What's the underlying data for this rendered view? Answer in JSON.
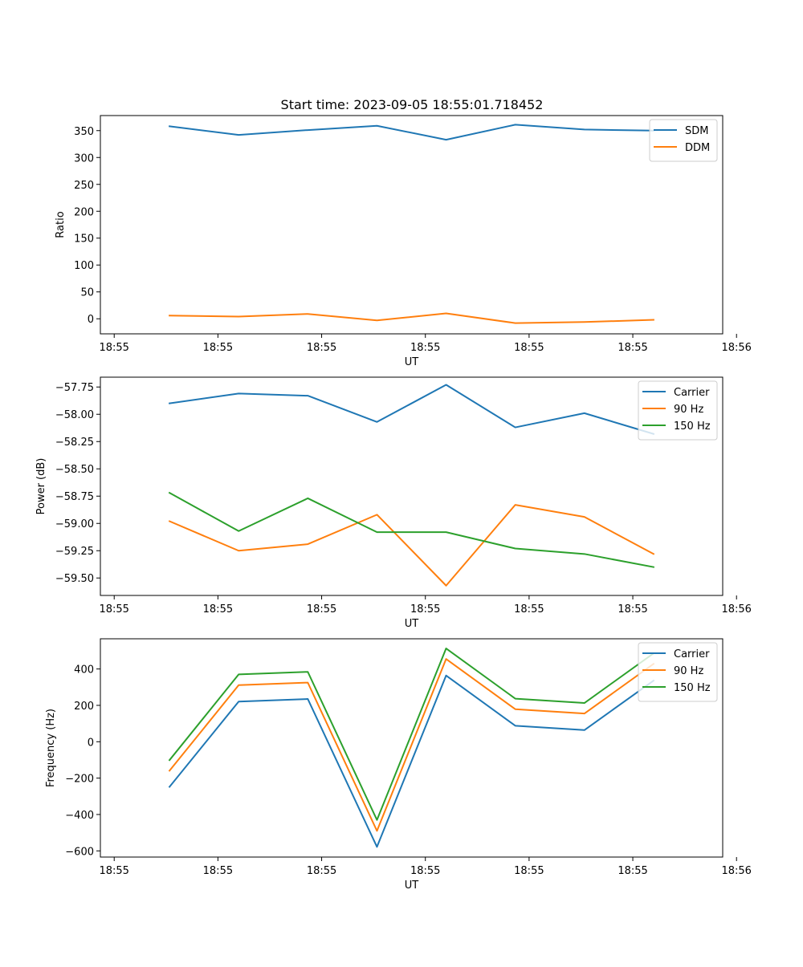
{
  "figure_title": "Start time: 2023-09-05 18:55:01.718452",
  "chart_data": [
    {
      "type": "line",
      "title": "Start time: 2023-09-05 18:55:01.718452",
      "xlabel": "UT",
      "ylabel": "Ratio",
      "xlim": [
        0,
        9
      ],
      "ylim": [
        -28,
        378
      ],
      "x_ticks": [
        0.2,
        1.7,
        3.2,
        4.7,
        6.2,
        7.7,
        9.2
      ],
      "x_tick_labels": [
        "18:55",
        "18:55",
        "18:55",
        "18:55",
        "18:55",
        "18:55",
        "18:56"
      ],
      "y_ticks": [
        0,
        50,
        100,
        150,
        200,
        250,
        300,
        350
      ],
      "y_tick_labels": [
        "0",
        "50",
        "100",
        "150",
        "200",
        "250",
        "300",
        "350"
      ],
      "legend_position": "top-right",
      "x": [
        1,
        2,
        3,
        4,
        5,
        6,
        7,
        8
      ],
      "series": [
        {
          "name": "SDM",
          "color": "#1f77b4",
          "values": [
            358,
            342,
            351,
            359,
            333,
            361,
            352,
            350
          ]
        },
        {
          "name": "DDM",
          "color": "#ff7f0e",
          "values": [
            6,
            4,
            9,
            -3,
            10,
            -8,
            -6,
            -2
          ]
        }
      ]
    },
    {
      "type": "line",
      "title": "",
      "xlabel": "UT",
      "ylabel": "Power (dB)",
      "xlim": [
        0,
        9
      ],
      "ylim": [
        -59.66,
        -57.66
      ],
      "x_ticks": [
        0.2,
        1.7,
        3.2,
        4.7,
        6.2,
        7.7,
        9.2
      ],
      "x_tick_labels": [
        "18:55",
        "18:55",
        "18:55",
        "18:55",
        "18:55",
        "18:55",
        "18:56"
      ],
      "y_ticks": [
        -59.5,
        -59.25,
        -59.0,
        -58.75,
        -58.5,
        -58.25,
        -58.0,
        -57.75
      ],
      "y_tick_labels": [
        "−59.50",
        "−59.25",
        "−59.00",
        "−58.75",
        "−58.50",
        "−58.25",
        "−58.00",
        "−57.75"
      ],
      "legend_position": "top-right",
      "x": [
        1,
        2,
        3,
        4,
        5,
        6,
        7,
        8
      ],
      "series": [
        {
          "name": "Carrier",
          "color": "#1f77b4",
          "values": [
            -57.9,
            -57.81,
            -57.83,
            -58.07,
            -57.73,
            -58.12,
            -57.99,
            -58.18
          ]
        },
        {
          "name": "90 Hz",
          "color": "#ff7f0e",
          "values": [
            -58.98,
            -59.25,
            -59.19,
            -58.92,
            -59.57,
            -58.83,
            -58.94,
            -59.28
          ]
        },
        {
          "name": "150 Hz",
          "color": "#2ca02c",
          "values": [
            -58.72,
            -59.07,
            -58.77,
            -59.08,
            -59.08,
            -59.23,
            -59.28,
            -59.4
          ]
        }
      ]
    },
    {
      "type": "line",
      "title": "",
      "xlabel": "UT",
      "ylabel": "Frequency (Hz)",
      "xlim": [
        0,
        9
      ],
      "ylim": [
        -634,
        566
      ],
      "x_ticks": [
        0.2,
        1.7,
        3.2,
        4.7,
        6.2,
        7.7,
        9.2
      ],
      "x_tick_labels": [
        "18:55",
        "18:55",
        "18:55",
        "18:55",
        "18:55",
        "18:55",
        "18:56"
      ],
      "y_ticks": [
        -600,
        -400,
        -200,
        0,
        200,
        400
      ],
      "y_tick_labels": [
        "−600",
        "−400",
        "−200",
        "0",
        "200",
        "400"
      ],
      "legend_position": "top-right",
      "x": [
        1,
        2,
        3,
        4,
        5,
        6,
        7,
        8
      ],
      "series": [
        {
          "name": "Carrier",
          "color": "#1f77b4",
          "values": [
            -248,
            221,
            235,
            -578,
            364,
            88,
            64,
            336
          ]
        },
        {
          "name": "90 Hz",
          "color": "#ff7f0e",
          "values": [
            -159,
            311,
            325,
            -490,
            455,
            179,
            155,
            428
          ]
        },
        {
          "name": "150 Hz",
          "color": "#2ca02c",
          "values": [
            -101,
            370,
            384,
            -430,
            513,
            237,
            213,
            486
          ]
        }
      ]
    }
  ]
}
